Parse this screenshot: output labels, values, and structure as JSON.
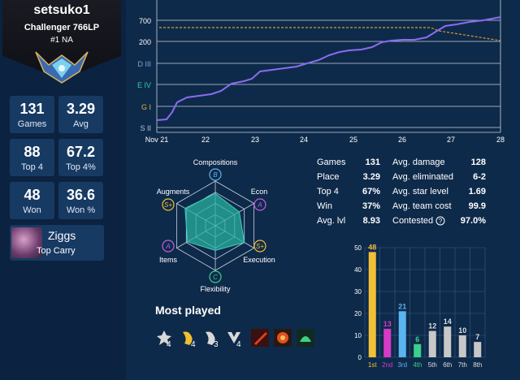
{
  "profile": {
    "name": "setsuko1",
    "rank": "Challenger 766LP",
    "region": "#1 NA"
  },
  "stats": [
    {
      "value": "131",
      "label": "Games"
    },
    {
      "value": "3.29",
      "label": "Avg"
    },
    {
      "value": "88",
      "label": "Top 4"
    },
    {
      "value": "67.2",
      "label": "Top 4%"
    },
    {
      "value": "48",
      "label": "Won"
    },
    {
      "value": "36.6",
      "label": "Won %"
    }
  ],
  "top_champion": {
    "name": "Ziggs",
    "role": "Top Carry"
  },
  "lp_chart": {
    "y_ticks": [
      "700",
      "200",
      "D III",
      "E IV",
      "G I",
      "S II"
    ],
    "x_ticks": [
      "Nov 21",
      "22",
      "23",
      "24",
      "25",
      "26",
      "27",
      "28"
    ],
    "colors": {
      "line": "#8a6cf0",
      "threshold": "#d89a3a",
      "grid": "#c8d2de"
    }
  },
  "radar": {
    "labels": [
      "Compositions",
      "Econ",
      "Execution",
      "Flexibility",
      "Items",
      "Augments"
    ],
    "grades": [
      "B",
      "A",
      "S+",
      "C",
      "A",
      "S+"
    ],
    "values": [
      0.72,
      0.62,
      0.75,
      0.55,
      0.72,
      0.78
    ]
  },
  "summary_left": [
    {
      "label": "Games",
      "value": "131"
    },
    {
      "label": "Place",
      "value": "3.29"
    },
    {
      "label": "Top 4",
      "value": "67%"
    },
    {
      "label": "Win",
      "value": "37%"
    },
    {
      "label": "Avg. lvl",
      "value": "8.93"
    }
  ],
  "summary_right": [
    {
      "label": "Avg. damage",
      "value": "128"
    },
    {
      "label": "Avg. eliminated",
      "value": "6-2"
    },
    {
      "label": "Avg. star level",
      "value": "1.69"
    },
    {
      "label": "Avg. team cost",
      "value": "99.9"
    },
    {
      "label": "Contested",
      "value": "97.0%",
      "icon": "help-icon"
    }
  ],
  "most_played": {
    "title": "Most played",
    "items": [
      {
        "icon": "trait-emblem-icon",
        "count": "4"
      },
      {
        "icon": "trait-emblem-gold-icon",
        "count": "4"
      },
      {
        "icon": "trait-emblem-icon",
        "count": "3"
      },
      {
        "icon": "trait-emblem-icon",
        "count": "4"
      },
      {
        "icon": "item-sword-icon",
        "count": ""
      },
      {
        "icon": "item-flame-icon",
        "count": ""
      },
      {
        "icon": "item-green-icon",
        "count": ""
      }
    ]
  },
  "chart_data": {
    "type": "bar",
    "categories": [
      "1st",
      "2nd",
      "3rd",
      "4th",
      "5th",
      "6th",
      "7th",
      "8th"
    ],
    "values": [
      48,
      13,
      21,
      6,
      12,
      14,
      10,
      7
    ],
    "colors": [
      "#f2c037",
      "#d63ac8",
      "#5ab4f0",
      "#3ad08a",
      "#c8c8c8",
      "#c8c8c8",
      "#c8c8c8",
      "#c8c8c8"
    ],
    "label_colors": [
      "#f2c037",
      "#d63ac8",
      "#5ab4f0",
      "#3ad08a",
      "#dddddd",
      "#dddddd",
      "#dddddd",
      "#dddddd"
    ],
    "ylim": [
      0,
      50
    ],
    "yticks": [
      0,
      10,
      20,
      30,
      40,
      50
    ],
    "grid": true
  }
}
